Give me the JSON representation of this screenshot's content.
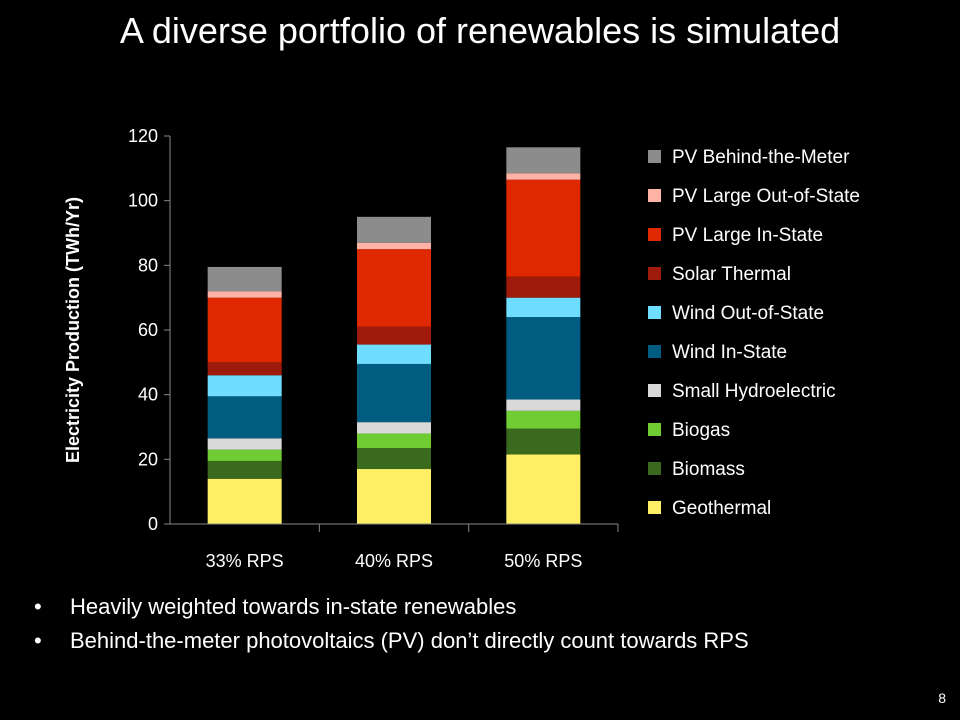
{
  "slide": {
    "title": "A diverse portfolio of renewables is simulated",
    "bullets": [
      "Heavily weighted towards in-state renewables",
      "Behind-the-meter photovoltaics (PV) don’t directly count towards RPS"
    ],
    "page_number": "8"
  },
  "chart_data": {
    "type": "bar",
    "stacked": true,
    "categories": [
      "33% RPS",
      "40% RPS",
      "50% RPS"
    ],
    "ylabel": "Electricity Production (TWh/Yr)",
    "xlabel": "",
    "ylim": [
      0,
      120
    ],
    "yticks": [
      0,
      20,
      40,
      60,
      80,
      100,
      120
    ],
    "legend_position": "right",
    "series": [
      {
        "name": "Geothermal",
        "color": "#FFEF66",
        "values": [
          14,
          17,
          21.5
        ]
      },
      {
        "name": "Biomass",
        "color": "#3A6A1E",
        "values": [
          5.5,
          6.5,
          8
        ]
      },
      {
        "name": "Biogas",
        "color": "#6FCC33",
        "values": [
          3.5,
          4.5,
          5.5
        ]
      },
      {
        "name": "Small Hydroelectric",
        "color": "#D9D9D9",
        "values": [
          3.5,
          3.5,
          3.5
        ]
      },
      {
        "name": "Wind In-State",
        "color": "#005C80",
        "values": [
          13,
          18,
          25.5
        ]
      },
      {
        "name": "Wind Out-of-State",
        "color": "#6FDDFF",
        "values": [
          6.5,
          6,
          6
        ]
      },
      {
        "name": "Solar Thermal",
        "color": "#9E1A0A",
        "values": [
          4,
          5.5,
          6.5
        ]
      },
      {
        "name": "PV Large In-State",
        "color": "#E02800",
        "values": [
          20,
          24,
          30
        ]
      },
      {
        "name": "PV Large Out-of-State",
        "color": "#FFB3A6",
        "values": [
          2,
          2,
          2
        ]
      },
      {
        "name": "PV Behind-the-Meter",
        "color": "#8C8C8C",
        "values": [
          7.5,
          8,
          8
        ]
      }
    ]
  }
}
